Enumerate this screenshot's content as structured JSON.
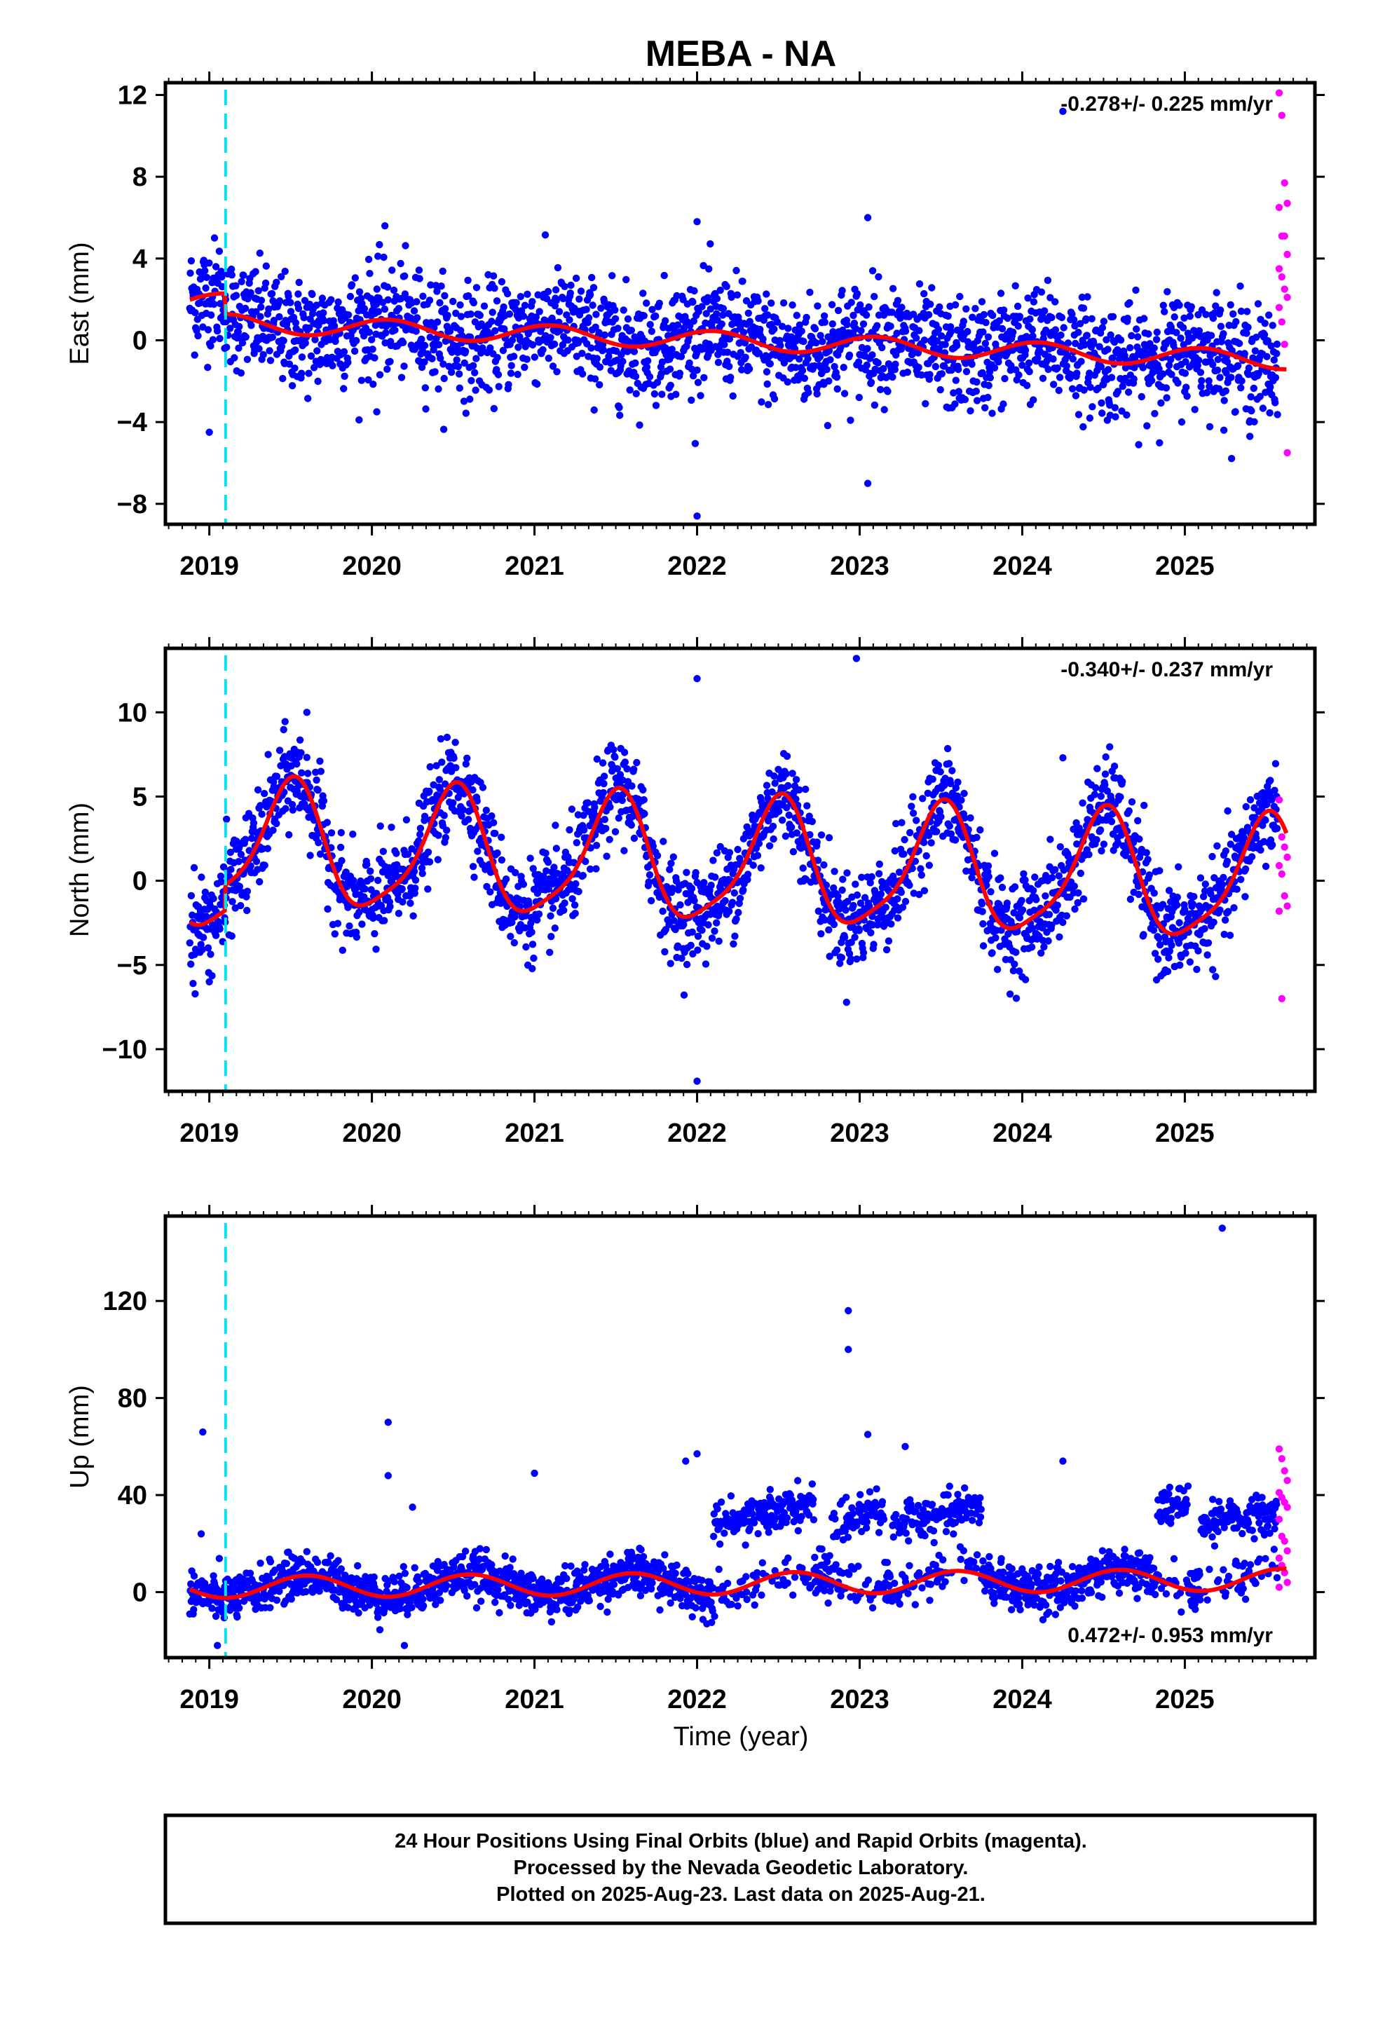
{
  "title": "MEBA - NA",
  "xlabel": "Time (year)",
  "footer": {
    "line1": "24 Hour Positions Using Final Orbits (blue) and Rapid Orbits (magenta).",
    "line2": "Processed by the Nevada Geodetic Laboratory.",
    "line3": "Plotted on 2025-Aug-23. Last data on 2025-Aug-21."
  },
  "colors": {
    "final_orbits": "#0000ff",
    "rapid_orbits": "#ff00ff",
    "model": "#ff0000",
    "event_line": "#00e5ee"
  },
  "chart_data": [
    {
      "type": "scatter",
      "ylabel": "East (mm)",
      "rate_label": "-0.278+/- 0.225 mm/yr",
      "xlim": [
        2018.73,
        2025.8
      ],
      "ylim": [
        -9,
        12.6
      ],
      "yticks": [
        -8,
        -4,
        0,
        4,
        8,
        12
      ],
      "xticks": [
        "2019",
        "2020",
        "2021",
        "2022",
        "2023",
        "2024",
        "2025"
      ],
      "event_line_x": 2019.1,
      "series": [
        {
          "role": "final",
          "values": {
            "start": 2018.88,
            "end": 2025.57,
            "n": 2250,
            "trend_start": 1.9,
            "rate": -0.278,
            "step_at": 2019.1,
            "step": -1.0,
            "annual_amp": 0.45,
            "annual_phase": 0.1,
            "noise": 1.35
          }
        },
        {
          "role": "rapid",
          "x_start": 2025.58,
          "x_end": 2025.63,
          "y": [
            12.1,
            11.0,
            7.7,
            6.7,
            6.5,
            5.1,
            5.1,
            4.2,
            3.5,
            3.1,
            2.5,
            2.1,
            1.6,
            0.9,
            -0.2,
            -5.5
          ]
        },
        {
          "role": "model",
          "formula": "trend+annual"
        }
      ],
      "outliers": [
        [
          2022.0,
          -8.6
        ],
        [
          2022.0,
          5.8
        ],
        [
          2023.05,
          6.0
        ],
        [
          2023.05,
          -7.0
        ],
        [
          2020.08,
          5.6
        ],
        [
          2019.0,
          -4.5
        ],
        [
          2024.25,
          11.2
        ],
        [
          2025.4,
          -4.7
        ],
        [
          2020.03,
          -3.5
        ]
      ]
    },
    {
      "type": "scatter",
      "ylabel": "North (mm)",
      "rate_label": "-0.340+/- 0.237 mm/yr",
      "xlim": [
        2018.73,
        2025.8
      ],
      "ylim": [
        -12.5,
        13.8
      ],
      "yticks": [
        -10,
        -5,
        0,
        5,
        10
      ],
      "xticks": [
        "2019",
        "2020",
        "2021",
        "2022",
        "2023",
        "2024",
        "2025"
      ],
      "event_line_x": 2019.1,
      "series": [
        {
          "role": "final",
          "values": {
            "start": 2018.88,
            "end": 2025.57,
            "n": 2250,
            "trend_start": 0.6,
            "rate": -0.34,
            "step_at": 2019.1,
            "step": 1.5,
            "annual_amp": 3.6,
            "annual_phase": 0.5,
            "noise": 1.4
          }
        },
        {
          "role": "rapid",
          "x_start": 2025.58,
          "x_end": 2025.63,
          "y": [
            4.8,
            2.6,
            2.0,
            1.4,
            0.9,
            0.4,
            -0.9,
            -1.5,
            -1.8,
            -7.0
          ]
        },
        {
          "role": "model",
          "formula": "trend+annual"
        }
      ],
      "outliers": [
        [
          2022.0,
          -11.9
        ],
        [
          2022.0,
          12.0
        ],
        [
          2022.98,
          13.2
        ],
        [
          2019.0,
          -6.0
        ],
        [
          2018.9,
          -6.1
        ],
        [
          2019.6,
          10.0
        ],
        [
          2024.25,
          7.3
        ]
      ]
    },
    {
      "type": "scatter",
      "ylabel": "Up (mm)",
      "rate_label": "0.472+/- 0.953 mm/yr",
      "xlim": [
        2018.73,
        2025.8
      ],
      "ylim": [
        -27,
        155
      ],
      "yticks": [
        0,
        40,
        80,
        120
      ],
      "xticks": [
        "2019",
        "2020",
        "2021",
        "2022",
        "2023",
        "2024",
        "2025"
      ],
      "event_line_x": 2019.1,
      "series": [
        {
          "role": "final",
          "values": {
            "start": 2018.88,
            "end": 2025.57,
            "n": 2250,
            "trend_start": 2.0,
            "rate": 0.472,
            "step_at": 2019.1,
            "step": 0.0,
            "annual_amp": 4.5,
            "annual_phase": 0.6,
            "noise": 4.5,
            "offset_bands": [
              [
                2022.1,
                2022.72,
                27,
                38
              ],
              [
                2022.83,
                2023.15,
                28,
                34
              ],
              [
                2023.2,
                2023.75,
                28,
                35
              ],
              [
                2024.83,
                2025.02,
                33,
                37
              ],
              [
                2025.1,
                2025.57,
                28,
                35
              ]
            ]
          }
        },
        {
          "role": "rapid",
          "x_start": 2025.58,
          "x_end": 2025.63,
          "y": [
            59,
            55,
            50,
            46,
            41,
            39,
            37,
            35,
            30,
            23,
            21,
            17,
            14,
            11,
            8,
            4,
            2
          ]
        },
        {
          "role": "model",
          "formula": "trend+annual"
        }
      ],
      "outliers": [
        [
          2018.96,
          66
        ],
        [
          2020.1,
          70
        ],
        [
          2020.1,
          48
        ],
        [
          2020.25,
          35
        ],
        [
          2021.0,
          49
        ],
        [
          2021.93,
          54
        ],
        [
          2022.0,
          57
        ],
        [
          2022.93,
          116
        ],
        [
          2022.93,
          100
        ],
        [
          2023.05,
          65
        ],
        [
          2023.28,
          60
        ],
        [
          2024.25,
          54
        ],
        [
          2025.23,
          150
        ],
        [
          2019.05,
          -22
        ],
        [
          2020.2,
          -22
        ],
        [
          2018.95,
          24
        ]
      ]
    }
  ]
}
